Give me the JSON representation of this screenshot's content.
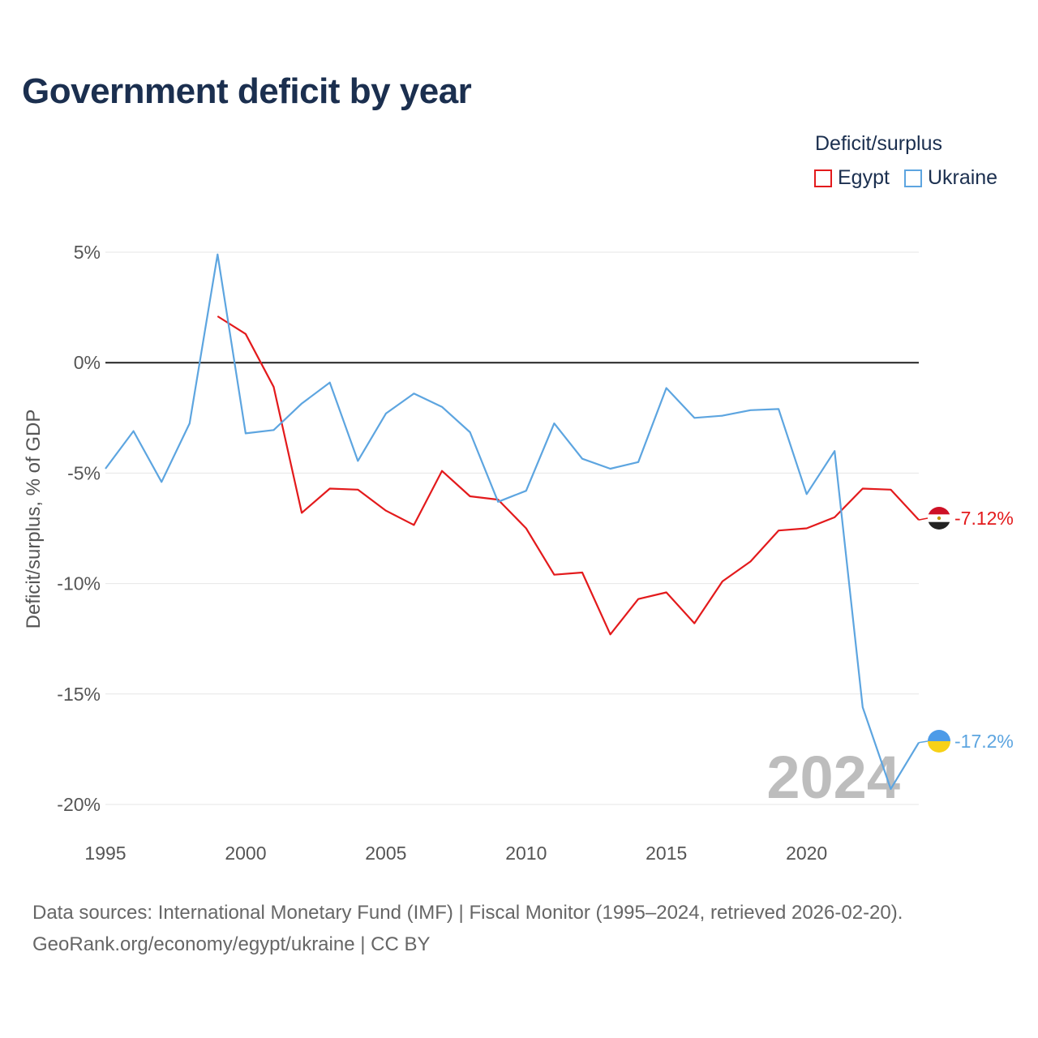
{
  "title": "Government deficit by year",
  "legend": {
    "title": "Deficit/surplus",
    "items": [
      {
        "label": "Egypt",
        "color": "#e31a1c"
      },
      {
        "label": "Ukraine",
        "color": "#5da5e0"
      }
    ]
  },
  "year_watermark": "2024",
  "footer": {
    "line1": "Data sources: International Monetary Fund (IMF) | Fiscal Monitor (1995–2024, retrieved 2026-02-20).",
    "line2": "GeoRank.org/economy/egypt/ukraine | CC BY"
  },
  "chart_data": {
    "type": "line",
    "title": "Government deficit by year",
    "xlabel": "",
    "ylabel": "Deficit/surplus, % of GDP",
    "xlim": [
      1995,
      2024
    ],
    "ylim": [
      -20,
      5
    ],
    "yticks": [
      5,
      0,
      -5,
      -10,
      -15,
      -20
    ],
    "ytick_labels": [
      "5%",
      "0%",
      "-5%",
      "-10%",
      "-15%",
      "-20%"
    ],
    "xticks": [
      1995,
      2000,
      2005,
      2010,
      2015,
      2020
    ],
    "xtick_labels": [
      "1995",
      "2000",
      "2005",
      "2010",
      "2015",
      "2020"
    ],
    "series": [
      {
        "name": "Egypt",
        "color": "#e31a1c",
        "end_label": "-7.12%",
        "x": [
          1999,
          2000,
          2001,
          2002,
          2003,
          2004,
          2005,
          2006,
          2007,
          2008,
          2009,
          2010,
          2011,
          2012,
          2013,
          2014,
          2015,
          2016,
          2017,
          2018,
          2019,
          2020,
          2021,
          2022,
          2023,
          2024
        ],
        "values": [
          2.1,
          1.3,
          -1.1,
          -6.8,
          -5.7,
          -5.75,
          -6.7,
          -7.35,
          -4.9,
          -6.05,
          -6.2,
          -7.5,
          -9.6,
          -9.5,
          -12.3,
          -10.7,
          -10.4,
          -11.8,
          -9.9,
          -9.0,
          -7.6,
          -7.5,
          -7.0,
          -5.7,
          -5.75,
          -7.12
        ]
      },
      {
        "name": "Ukraine",
        "color": "#5da5e0",
        "end_label": "-17.2%",
        "x": [
          1995,
          1996,
          1997,
          1998,
          1999,
          2000,
          2001,
          2002,
          2003,
          2004,
          2005,
          2006,
          2007,
          2008,
          2009,
          2010,
          2011,
          2012,
          2013,
          2014,
          2015,
          2016,
          2017,
          2018,
          2019,
          2020,
          2021,
          2022,
          2023,
          2024
        ],
        "values": [
          -4.8,
          -3.1,
          -5.4,
          -2.75,
          4.9,
          -3.2,
          -3.05,
          -1.85,
          -0.9,
          -4.45,
          -2.3,
          -1.4,
          -2.0,
          -3.15,
          -6.3,
          -5.8,
          -2.75,
          -4.35,
          -4.8,
          -4.5,
          -1.15,
          -2.5,
          -2.4,
          -2.15,
          -2.1,
          -5.95,
          -4.0,
          -15.6,
          -19.3,
          -17.2
        ]
      }
    ]
  }
}
